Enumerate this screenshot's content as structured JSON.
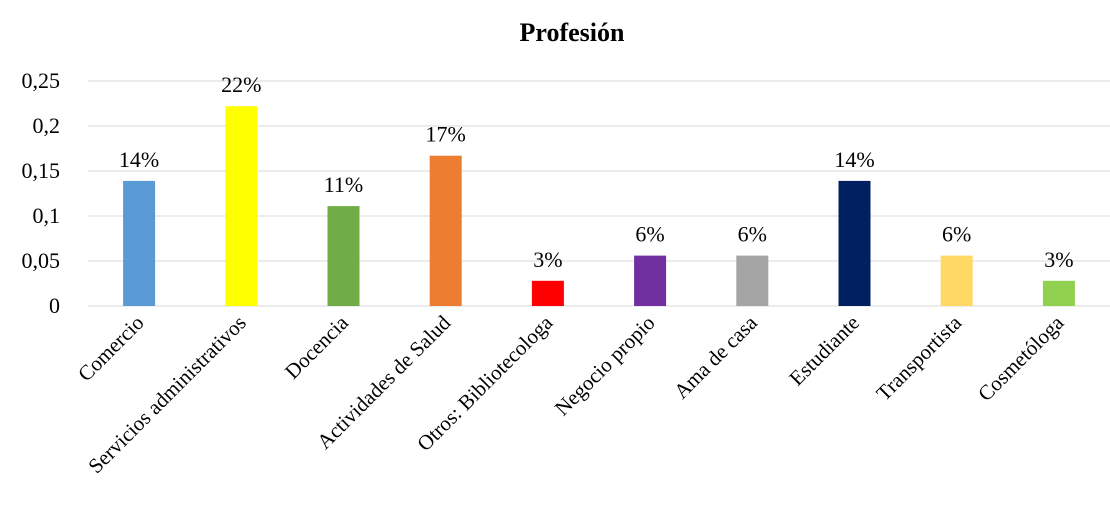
{
  "chart_data": {
    "type": "bar",
    "title": "Profesión",
    "xlabel": "",
    "ylabel": "",
    "ylim": [
      0,
      0.25
    ],
    "yticks": [
      "0",
      "0,05",
      "0,1",
      "0,15",
      "0,2",
      "0,25"
    ],
    "ytick_values": [
      0,
      0.05,
      0.1,
      0.15,
      0.2,
      0.25
    ],
    "grid": true,
    "legend": "none",
    "categories": [
      "Comercio",
      "Servicios administrativos",
      "Docencia",
      "Actividades de Salud",
      "Otros: Bibliotecologa",
      "Negocio propio",
      "Ama de casa",
      "Estudiante",
      "Transportista",
      "Cosmetóloga"
    ],
    "values": [
      0.139,
      0.222,
      0.111,
      0.167,
      0.028,
      0.056,
      0.056,
      0.139,
      0.056,
      0.028
    ],
    "data_labels": [
      "14%",
      "22%",
      "11%",
      "17%",
      "3%",
      "6%",
      "6%",
      "14%",
      "6%",
      "3%"
    ],
    "colors": [
      "#5b9bd5",
      "#ffff00",
      "#70ad47",
      "#ed7d31",
      "#ff0000",
      "#7030a0",
      "#a5a5a5",
      "#002060",
      "#ffd966",
      "#92d050"
    ]
  }
}
